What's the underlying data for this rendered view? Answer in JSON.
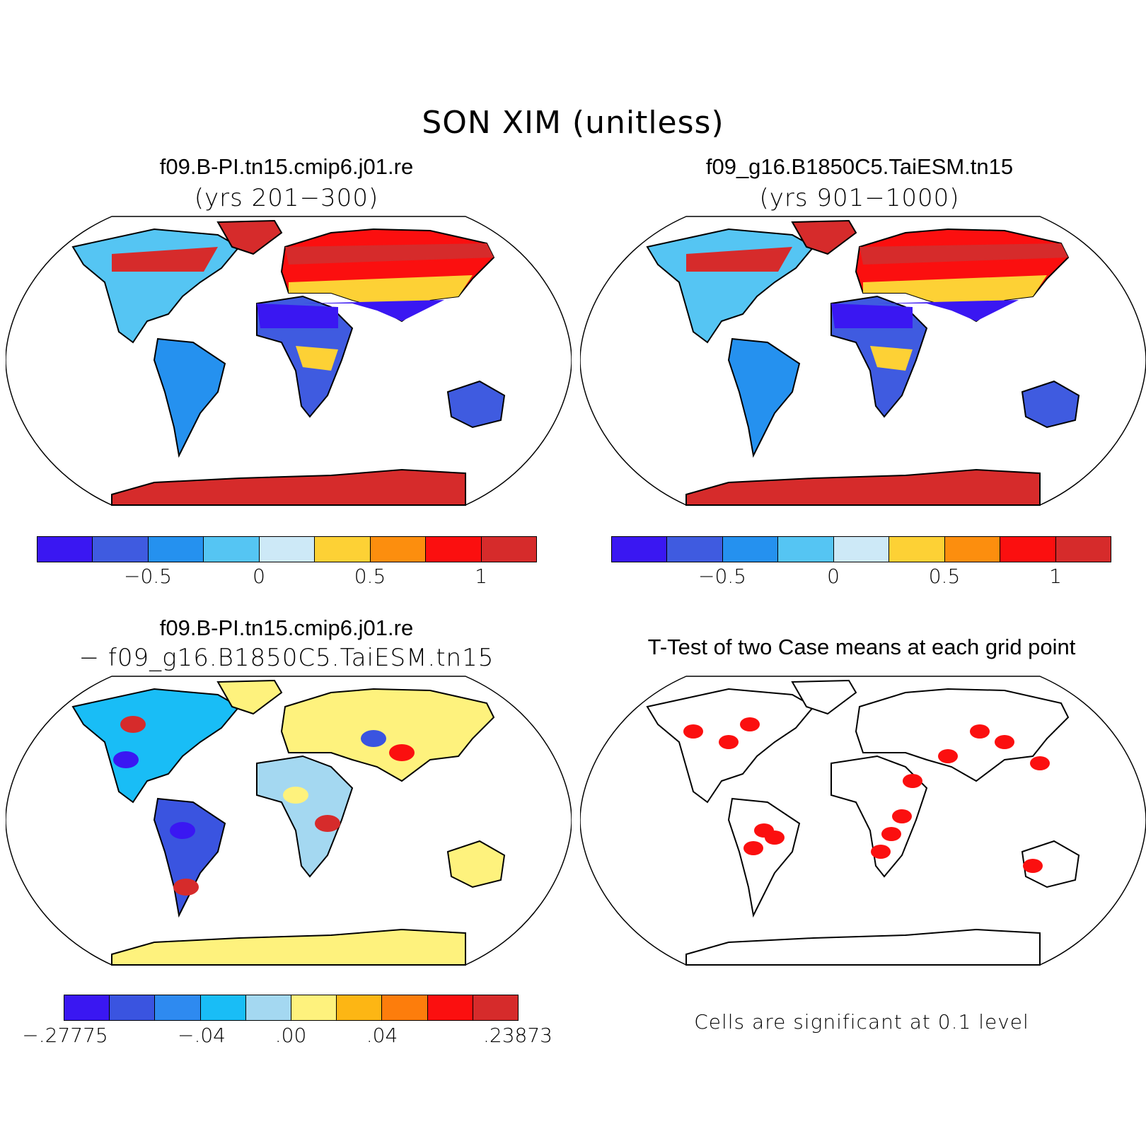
{
  "main_title": "SON XIM (unitless)",
  "panel1": {
    "title": "f09.B-PI.tn15.cmip6.j01.re",
    "subtitle": "(yrs 201−300)"
  },
  "panel2": {
    "title": "f09_g16.B1850C5.TaiESM.tn15",
    "subtitle": "(yrs 901−1000)"
  },
  "panel3": {
    "title": "f09.B-PI.tn15.cmip6.j01.re",
    "subtitle": "− f09_g16.B1850C5.TaiESM.tn15"
  },
  "panel4": {
    "title": "T-Test of two Case means at each grid point",
    "note": "Cells are significant at 0.1 level"
  },
  "colorbar_abs": {
    "colors": [
      "#3a17f2",
      "#3f5be0",
      "#2591ef",
      "#55c5f3",
      "#cde9f7",
      "#fdd135",
      "#fc8e0e",
      "#fb0f0f",
      "#d62b2b"
    ],
    "tick_labels": [
      "−0.5",
      "0",
      "0.5",
      "1"
    ]
  },
  "colorbar_diff": {
    "colors": [
      "#3a17f2",
      "#3a54e0",
      "#2e8af0",
      "#19bdf6",
      "#a4d8f1",
      "#fef27d",
      "#fdb614",
      "#fd7d0c",
      "#fb0f0f",
      "#d62b2b"
    ],
    "tick_labels": [
      ".27775−",
      "−.04",
      ".00",
      ".04",
      ".23873"
    ],
    "tick_labels_display": [
      "−.27775",
      "−.04",
      ".00",
      ".04",
      ".23873"
    ]
  },
  "colors": {
    "ocean": "#ffffff",
    "outline": "#000000",
    "significant": "#fb0f0f",
    "antarctic_abs": "#d62b2b",
    "antarctic_diff": "#fef27d"
  }
}
